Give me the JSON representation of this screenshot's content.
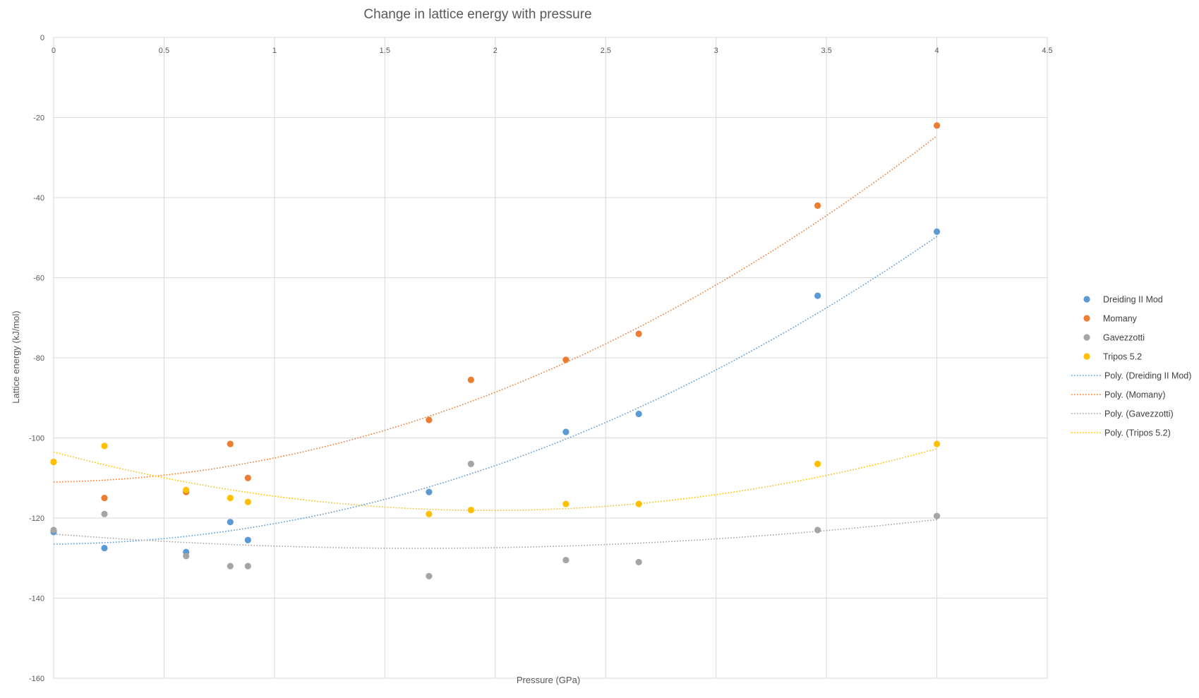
{
  "chart_data": {
    "type": "scatter",
    "title": "Change in lattice energy with pressure",
    "xlabel": "Pressure (GPa)",
    "ylabel": "Lattice energy  (kJ/mol)",
    "xlim": [
      0,
      4.5
    ],
    "ylim": [
      -160,
      0
    ],
    "x_ticks": [
      "0",
      "0.5",
      "1",
      "1.5",
      "2",
      "2.5",
      "3",
      "3.5",
      "4",
      "4.5"
    ],
    "y_ticks": [
      "0",
      "-20",
      "-40",
      "-60",
      "-80",
      "-100",
      "-120",
      "-140",
      "-160"
    ],
    "grid": true,
    "x_axis_position": "top",
    "legend_position": "right",
    "series": [
      {
        "name": "Dreiding II Mod",
        "color": "#5B9BD5",
        "points": [
          [
            0,
            -123.5
          ],
          [
            0.23,
            -127.5
          ],
          [
            0.6,
            -128.5
          ],
          [
            0.8,
            -121
          ],
          [
            0.88,
            -125.5
          ],
          [
            1.7,
            -113.5
          ],
          [
            2.32,
            -98.5
          ],
          [
            2.65,
            -94
          ],
          [
            3.46,
            -64.5
          ],
          [
            4.0,
            -48.5
          ]
        ],
        "trend": {
          "name": "Poly. (Dreiding II Mod)",
          "coef": [
            -126.5,
            0.4,
            4.7
          ]
        }
      },
      {
        "name": "Momany",
        "color": "#ED7D31",
        "points": [
          [
            0,
            -106
          ],
          [
            0.23,
            -115
          ],
          [
            0.6,
            -113.5
          ],
          [
            0.8,
            -101.5
          ],
          [
            0.88,
            -110
          ],
          [
            1.7,
            -95.5
          ],
          [
            1.89,
            -85.5
          ],
          [
            2.32,
            -80.5
          ],
          [
            2.65,
            -74
          ],
          [
            3.46,
            -42
          ],
          [
            4.0,
            -22
          ]
        ],
        "trend": {
          "name": "Poly. (Momany)",
          "coef": [
            -111,
            0.8,
            5.2
          ]
        }
      },
      {
        "name": "Gavezzotti",
        "color": "#A5A5A5",
        "points": [
          [
            0,
            -123
          ],
          [
            0.23,
            -119
          ],
          [
            0.6,
            -129.5
          ],
          [
            0.8,
            -132
          ],
          [
            0.88,
            -132
          ],
          [
            1.7,
            -134.5
          ],
          [
            1.89,
            -106.5
          ],
          [
            2.32,
            -130.5
          ],
          [
            2.65,
            -131
          ],
          [
            3.46,
            -123
          ],
          [
            4.0,
            -119.5
          ]
        ],
        "trend": {
          "name": "Poly. (Gavezzotti)",
          "coef": [
            -124,
            -4.3,
            1.3
          ]
        }
      },
      {
        "name": "Tripos 5.2",
        "color": "#FFC000",
        "points": [
          [
            0,
            -106
          ],
          [
            0.23,
            -102
          ],
          [
            0.6,
            -113
          ],
          [
            0.8,
            -115
          ],
          [
            0.88,
            -116
          ],
          [
            1.7,
            -119
          ],
          [
            1.89,
            -118
          ],
          [
            2.32,
            -116.5
          ],
          [
            2.65,
            -116.5
          ],
          [
            3.46,
            -106.5
          ],
          [
            4.0,
            -101.5
          ]
        ],
        "trend": {
          "name": "Poly. (Tripos 5.2)",
          "coef": [
            -103.5,
            -14.8,
            3.75
          ]
        }
      }
    ]
  }
}
